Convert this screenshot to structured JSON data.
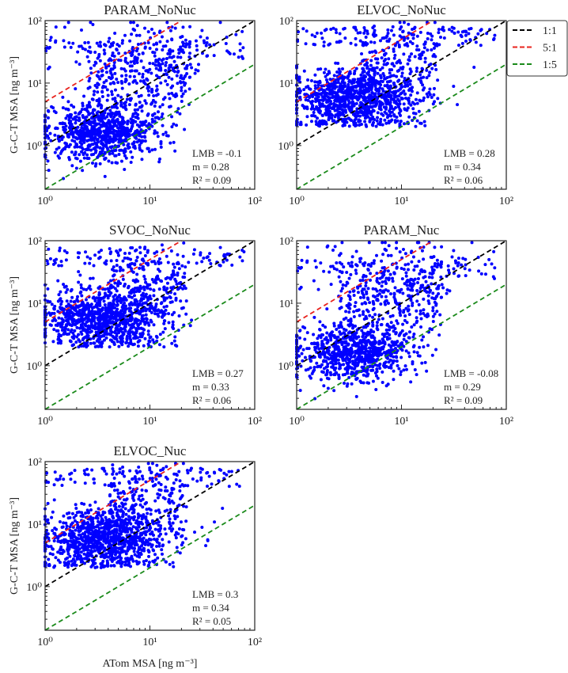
{
  "chart_data": [
    {
      "type": "scatter",
      "title": "PARAM_NoNuc",
      "ylabel": "G-C-T MSA [ng m⁻³]",
      "xlabel": "",
      "xscale": "log",
      "yscale": "log",
      "xlim": [
        1,
        100
      ],
      "ylim": [
        0.2,
        100
      ],
      "xticks": [
        "10⁰",
        "10¹",
        "10²"
      ],
      "yticks": [
        "10⁰",
        "10¹",
        "10²"
      ],
      "point_color": "#0000ff",
      "annotation": {
        "lmb": "LMB = -0.1",
        "m": "m = 0.28",
        "r2": "R² = 0.09"
      }
    },
    {
      "type": "scatter",
      "title": "ELVOC_NoNuc",
      "ylabel": "",
      "xlabel": "",
      "xscale": "log",
      "yscale": "log",
      "xlim": [
        1,
        100
      ],
      "ylim": [
        0.2,
        100
      ],
      "xticks": [
        "10⁰",
        "10¹",
        "10²"
      ],
      "yticks": [
        "10⁰",
        "10¹",
        "10²"
      ],
      "point_color": "#0000ff",
      "annotation": {
        "lmb": "LMB = 0.28",
        "m": "m = 0.34",
        "r2": "R² = 0.06"
      }
    },
    {
      "type": "scatter",
      "title": "SVOC_NoNuc",
      "ylabel": "G-C-T MSA [ng m⁻³]",
      "xlabel": "",
      "xscale": "log",
      "yscale": "log",
      "xlim": [
        1,
        100
      ],
      "ylim": [
        0.2,
        100
      ],
      "xticks": [
        "10⁰",
        "10¹",
        "10²"
      ],
      "yticks": [
        "10⁰",
        "10¹",
        "10²"
      ],
      "point_color": "#0000ff",
      "annotation": {
        "lmb": "LMB = 0.27",
        "m": "m = 0.33",
        "r2": "R² = 0.06"
      }
    },
    {
      "type": "scatter",
      "title": "PARAM_Nuc",
      "ylabel": "",
      "xlabel": "",
      "xscale": "log",
      "yscale": "log",
      "xlim": [
        1,
        100
      ],
      "ylim": [
        0.2,
        100
      ],
      "xticks": [
        "10⁰",
        "10¹",
        "10²"
      ],
      "yticks": [
        "10⁰",
        "10¹",
        "10²"
      ],
      "point_color": "#0000ff",
      "annotation": {
        "lmb": "LMB = -0.08",
        "m": "m = 0.29",
        "r2": "R² = 0.09"
      }
    },
    {
      "type": "scatter",
      "title": "ELVOC_Nuc",
      "ylabel": "G-C-T MSA [ng m⁻³]",
      "xlabel": "ATom MSA [ng m⁻³]",
      "xscale": "log",
      "yscale": "log",
      "xlim": [
        1,
        100
      ],
      "ylim": [
        0.2,
        100
      ],
      "xticks": [
        "10⁰",
        "10¹",
        "10²"
      ],
      "yticks": [
        "10⁰",
        "10¹",
        "10²"
      ],
      "point_color": "#0000ff",
      "annotation": {
        "lmb": "LMB = 0.3",
        "m": "m = 0.34",
        "r2": "R² = 0.05"
      }
    }
  ],
  "reference_lines": [
    {
      "label": "1:1",
      "ratio": 1,
      "color": "#000000"
    },
    {
      "label": "5:1",
      "ratio": 5,
      "color": "#e8231e"
    },
    {
      "label": "1:5",
      "ratio": 0.2,
      "color": "#1a8a1a"
    }
  ],
  "legend": {
    "placement": "right of top-right panel"
  }
}
